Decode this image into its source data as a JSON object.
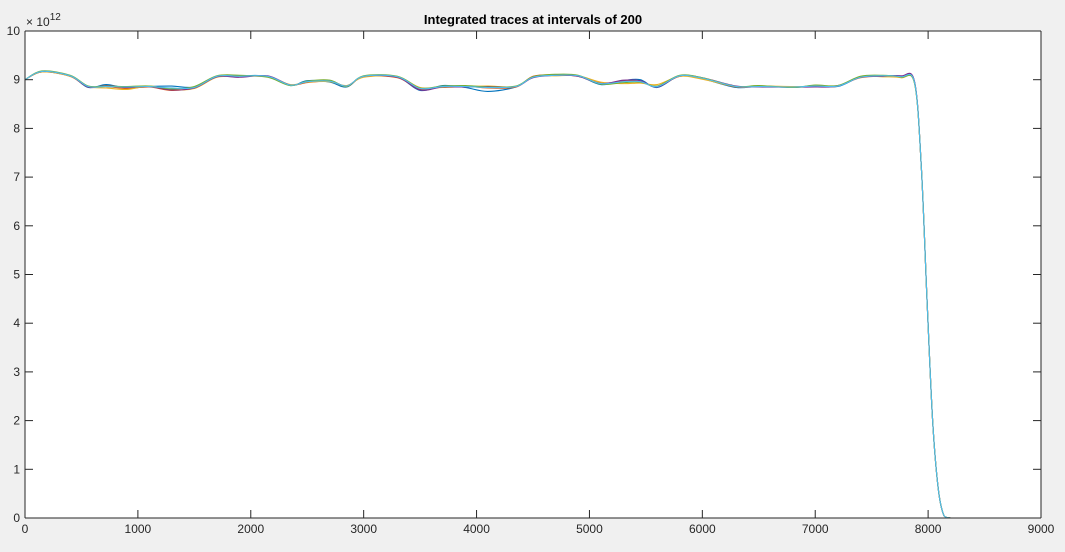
{
  "chart_data": {
    "type": "line",
    "title": "Integrated traces at intervals of 200",
    "xlabel": "",
    "ylabel": "",
    "xlim": [
      0,
      9000
    ],
    "ylim": [
      0,
      10
    ],
    "y_multiplier_label": "× 10",
    "y_exponent": "12",
    "xticks": [
      "0",
      "1000",
      "2000",
      "3000",
      "4000",
      "5000",
      "6000",
      "7000",
      "8000",
      "9000"
    ],
    "yticks": [
      "0",
      "1",
      "2",
      "3",
      "4",
      "5",
      "6",
      "7",
      "8",
      "9",
      "10"
    ],
    "grid": false,
    "legend": "none",
    "series": [
      {
        "color": "#0072bd",
        "x": [
          0,
          150,
          400,
          560,
          720,
          900,
          1100,
          1300,
          1500,
          1700,
          1900,
          2150,
          2350,
          2500,
          2700,
          2850,
          3000,
          3300,
          3500,
          3700,
          3900,
          4100,
          4350,
          4500,
          4700,
          4900,
          5100,
          5300,
          5450,
          5600,
          5800,
          6000,
          6300,
          6500,
          6800,
          7000,
          7200,
          7400,
          7600,
          7760,
          7880,
          7940,
          7990,
          8040,
          8090,
          8140,
          8200,
          8300
        ],
        "values": [
          9.0,
          9.17,
          9.08,
          8.84,
          8.9,
          8.83,
          8.86,
          8.87,
          8.85,
          9.07,
          9.08,
          9.07,
          8.88,
          8.98,
          8.95,
          8.85,
          9.07,
          9.05,
          8.78,
          8.88,
          8.84,
          8.76,
          8.85,
          9.05,
          9.09,
          9.08,
          8.9,
          8.98,
          9.0,
          8.84,
          9.08,
          9.02,
          8.84,
          8.87,
          8.84,
          8.88,
          8.86,
          9.05,
          9.08,
          9.07,
          8.95,
          7.2,
          4.5,
          2.0,
          0.6,
          0.05,
          0.0,
          0.0
        ]
      },
      {
        "color": "#d95319",
        "x": [
          0,
          150,
          400,
          560,
          720,
          900,
          1100,
          1300,
          1500,
          1700,
          1900,
          2150,
          2350,
          2500,
          2700,
          2850,
          3000,
          3300,
          3500,
          3700,
          3900,
          4100,
          4350,
          4500,
          4700,
          4900,
          5100,
          5300,
          5450,
          5600,
          5800,
          6000,
          6300,
          6500,
          6800,
          7000,
          7200,
          7400,
          7600,
          7760,
          7880,
          7940,
          7990,
          8040,
          8090,
          8140,
          8200,
          8300
        ],
        "values": [
          9.0,
          9.16,
          9.07,
          8.85,
          8.86,
          8.82,
          8.85,
          8.78,
          8.84,
          9.06,
          9.07,
          9.06,
          8.89,
          8.94,
          8.97,
          8.86,
          9.06,
          9.04,
          8.8,
          8.86,
          8.87,
          8.83,
          8.85,
          9.07,
          9.1,
          9.07,
          8.93,
          8.97,
          8.96,
          8.86,
          9.07,
          9.03,
          8.85,
          8.86,
          8.85,
          8.87,
          8.88,
          9.04,
          9.07,
          9.06,
          8.94,
          7.2,
          4.5,
          2.0,
          0.6,
          0.05,
          0.0,
          0.0
        ]
      },
      {
        "color": "#edb120",
        "x": [
          0,
          150,
          400,
          560,
          720,
          900,
          1100,
          1300,
          1500,
          1700,
          1900,
          2150,
          2350,
          2500,
          2700,
          2850,
          3000,
          3300,
          3500,
          3700,
          3900,
          4100,
          4350,
          4500,
          4700,
          4900,
          5100,
          5300,
          5450,
          5600,
          5800,
          6000,
          6300,
          6500,
          6800,
          7000,
          7200,
          7400,
          7600,
          7760,
          7880,
          7940,
          7990,
          8040,
          8090,
          8140,
          8200,
          8300
        ],
        "values": [
          9.0,
          9.16,
          9.07,
          8.86,
          8.83,
          8.8,
          8.87,
          8.8,
          8.82,
          9.05,
          9.06,
          9.07,
          8.9,
          8.95,
          8.96,
          8.88,
          9.05,
          9.06,
          8.84,
          8.84,
          8.86,
          8.87,
          8.86,
          9.06,
          9.08,
          9.08,
          8.95,
          8.92,
          8.93,
          8.9,
          9.07,
          9.01,
          8.86,
          8.87,
          8.86,
          8.86,
          8.87,
          9.06,
          9.06,
          9.04,
          8.93,
          7.2,
          4.5,
          2.0,
          0.6,
          0.05,
          0.0,
          0.0
        ]
      },
      {
        "color": "#7e2f8e",
        "x": [
          0,
          150,
          400,
          560,
          720,
          900,
          1100,
          1300,
          1500,
          1700,
          1900,
          2150,
          2350,
          2500,
          2700,
          2850,
          3000,
          3300,
          3500,
          3700,
          3900,
          4100,
          4350,
          4500,
          4700,
          4900,
          5100,
          5300,
          5450,
          5600,
          5800,
          6000,
          6300,
          6500,
          6800,
          7000,
          7200,
          7400,
          7600,
          7760,
          7880,
          7940,
          7990,
          8040,
          8090,
          8140,
          8200,
          8300
        ],
        "values": [
          9.0,
          9.17,
          9.08,
          8.85,
          8.88,
          8.84,
          8.86,
          8.79,
          8.83,
          9.06,
          9.05,
          9.08,
          8.89,
          8.96,
          8.98,
          8.87,
          9.07,
          9.05,
          8.79,
          8.85,
          8.85,
          8.86,
          8.86,
          9.04,
          9.09,
          9.07,
          8.92,
          8.99,
          8.98,
          8.85,
          9.08,
          9.04,
          8.87,
          8.85,
          8.85,
          8.85,
          8.87,
          9.05,
          9.07,
          9.08,
          8.96,
          7.2,
          4.5,
          2.0,
          0.6,
          0.05,
          0.0,
          0.0
        ]
      },
      {
        "color": "#77ac30",
        "x": [
          0,
          150,
          400,
          560,
          720,
          900,
          1100,
          1300,
          1500,
          1700,
          1900,
          2150,
          2350,
          2500,
          2700,
          2850,
          3000,
          3300,
          3500,
          3700,
          3900,
          4100,
          4350,
          4500,
          4700,
          4900,
          5100,
          5300,
          5450,
          5600,
          5800,
          6000,
          6300,
          6500,
          6800,
          7000,
          7200,
          7400,
          7600,
          7760,
          7880,
          7940,
          7990,
          8040,
          8090,
          8140,
          8200,
          8300
        ],
        "values": [
          9.0,
          9.18,
          9.09,
          8.87,
          8.87,
          8.86,
          8.87,
          8.81,
          8.86,
          9.08,
          9.09,
          9.05,
          8.88,
          8.97,
          8.99,
          8.86,
          9.08,
          9.07,
          8.83,
          8.87,
          8.88,
          8.85,
          8.87,
          9.06,
          9.11,
          9.09,
          8.91,
          8.94,
          8.95,
          8.87,
          9.09,
          9.04,
          8.86,
          8.88,
          8.84,
          8.89,
          8.88,
          9.07,
          9.09,
          9.05,
          8.92,
          7.2,
          4.5,
          2.0,
          0.6,
          0.05,
          0.0,
          0.0
        ]
      },
      {
        "color": "#4dbeee",
        "x": [
          0,
          150,
          400,
          560,
          720,
          900,
          1100,
          1300,
          1500,
          1700,
          1900,
          2150,
          2350,
          2500,
          2700,
          2850,
          3000,
          3300,
          3500,
          3700,
          3900,
          4100,
          4350,
          4500,
          4700,
          4900,
          5100,
          5300,
          5450,
          5600,
          5800,
          6000,
          6300,
          6500,
          6800,
          7000,
          7200,
          7400,
          7600,
          7760,
          7880,
          7940,
          7990,
          8040,
          8090,
          8140,
          8200,
          8300
        ],
        "values": [
          9.0,
          9.17,
          9.08,
          8.86,
          8.86,
          8.85,
          8.86,
          8.83,
          8.84,
          9.07,
          9.07,
          9.07,
          8.89,
          8.96,
          8.97,
          8.87,
          9.07,
          9.06,
          8.82,
          8.86,
          8.86,
          8.84,
          8.86,
          9.05,
          9.09,
          9.08,
          8.92,
          8.96,
          8.96,
          8.86,
          9.08,
          9.03,
          8.86,
          8.86,
          8.85,
          8.87,
          8.87,
          9.05,
          9.08,
          9.06,
          8.94,
          7.2,
          4.5,
          2.0,
          0.6,
          0.05,
          0.0,
          0.0
        ]
      }
    ]
  }
}
